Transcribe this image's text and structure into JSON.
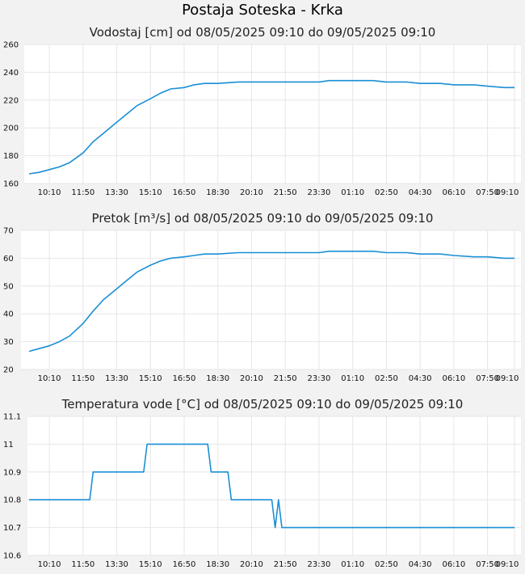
{
  "page_title": "Postaja Soteska - Krka",
  "colors": {
    "line": "#1a8fd6",
    "grid": "#e6e6e6",
    "plot_bg": "#ffffff",
    "page_bg": "#f2f2f2"
  },
  "chart_data": [
    {
      "type": "line",
      "title": "Vodostaj [cm] od 08/05/2025 09:10 do 09/05/2025 09:10",
      "xlabel": "",
      "ylabel": "",
      "x_ticks": [
        "10:10",
        "11:50",
        "13:30",
        "15:10",
        "16:50",
        "18:30",
        "20:10",
        "21:50",
        "23:30",
        "01:10",
        "02:50",
        "04:30",
        "06:10",
        "07:50",
        "09:10"
      ],
      "y_ticks": [
        "160",
        "180",
        "200",
        "220",
        "240",
        "260"
      ],
      "ylim": [
        160,
        260
      ],
      "grid": true,
      "series": [
        {
          "x": [
            "08/05 09:10",
            "08/05 09:40",
            "08/05 10:10",
            "08/05 10:40",
            "08/05 11:10",
            "08/05 11:50",
            "08/05 12:20",
            "08/05 12:50",
            "08/05 13:30",
            "08/05 14:00",
            "08/05 14:30",
            "08/05 15:10",
            "08/05 15:40",
            "08/05 16:10",
            "08/05 16:50",
            "08/05 17:20",
            "08/05 17:50",
            "08/05 18:30",
            "08/05 19:30",
            "08/05 20:10",
            "08/05 21:50",
            "08/05 23:30",
            "09/05 00:00",
            "09/05 01:10",
            "09/05 02:10",
            "09/05 02:50",
            "09/05 03:50",
            "09/05 04:30",
            "09/05 05:30",
            "09/05 06:10",
            "09/05 07:10",
            "09/05 07:50",
            "09/05 08:40",
            "09/05 09:10"
          ],
          "values": [
            167,
            168,
            170,
            172,
            175,
            182,
            190,
            196,
            204,
            210,
            216,
            221,
            225,
            228,
            229,
            231,
            232,
            232,
            233,
            233,
            233,
            233,
            234,
            234,
            234,
            233,
            233,
            232,
            232,
            231,
            231,
            230,
            229,
            229
          ]
        }
      ]
    },
    {
      "type": "line",
      "title": "Pretok [m³/s] od 08/05/2025 09:10 do 09/05/2025 09:10",
      "xlabel": "",
      "ylabel": "",
      "x_ticks": [
        "10:10",
        "11:50",
        "13:30",
        "15:10",
        "16:50",
        "18:30",
        "20:10",
        "21:50",
        "23:30",
        "01:10",
        "02:50",
        "04:30",
        "06:10",
        "07:50",
        "09:10"
      ],
      "y_ticks": [
        "20",
        "30",
        "40",
        "50",
        "60",
        "70"
      ],
      "ylim": [
        20,
        70
      ],
      "grid": true,
      "series": [
        {
          "x": [
            "08/05 09:10",
            "08/05 09:40",
            "08/05 10:10",
            "08/05 10:40",
            "08/05 11:10",
            "08/05 11:50",
            "08/05 12:20",
            "08/05 12:50",
            "08/05 13:30",
            "08/05 14:00",
            "08/05 14:30",
            "08/05 15:10",
            "08/05 15:40",
            "08/05 16:10",
            "08/05 16:50",
            "08/05 17:20",
            "08/05 17:50",
            "08/05 18:30",
            "08/05 19:30",
            "08/05 20:10",
            "08/05 21:50",
            "08/05 23:30",
            "09/05 00:00",
            "09/05 01:10",
            "09/05 02:10",
            "09/05 02:50",
            "09/05 03:50",
            "09/05 04:30",
            "09/05 05:30",
            "09/05 06:10",
            "09/05 07:10",
            "09/05 07:50",
            "09/05 08:40",
            "09/05 09:10"
          ],
          "values": [
            26.5,
            27.5,
            28.5,
            30,
            32,
            36.5,
            41,
            45,
            49,
            52,
            55,
            57.5,
            59,
            60,
            60.5,
            61,
            61.5,
            61.5,
            62,
            62,
            62,
            62,
            62.5,
            62.5,
            62.5,
            62,
            62,
            61.5,
            61.5,
            61,
            60.5,
            60.5,
            60,
            60
          ]
        }
      ]
    },
    {
      "type": "line",
      "title": "Temperatura vode [°C] od 08/05/2025 09:10 do 09/05/2025 09:10",
      "xlabel": "",
      "ylabel": "",
      "x_ticks": [
        "10:10",
        "11:50",
        "13:30",
        "15:10",
        "16:50",
        "18:30",
        "20:10",
        "21:50",
        "23:30",
        "01:10",
        "02:50",
        "04:30",
        "06:10",
        "07:50",
        "09:10"
      ],
      "y_ticks": [
        "10.6",
        "10.7",
        "10.8",
        "10.9",
        "11",
        "11.1"
      ],
      "ylim": [
        10.6,
        11.1
      ],
      "grid": true,
      "series": [
        {
          "x": [
            "08/05 09:10",
            "08/05 12:10",
            "08/05 12:20",
            "08/05 14:50",
            "08/05 15:00",
            "08/05 18:00",
            "08/05 18:10",
            "08/05 19:00",
            "08/05 19:10",
            "08/05 21:10",
            "08/05 21:20",
            "08/05 21:30",
            "08/05 21:40",
            "08/05 21:50",
            "09/05 09:10"
          ],
          "values": [
            10.8,
            10.8,
            10.9,
            10.9,
            11,
            11,
            10.9,
            10.9,
            10.8,
            10.8,
            10.7,
            10.8,
            10.7,
            10.7,
            10.7
          ]
        }
      ]
    }
  ]
}
